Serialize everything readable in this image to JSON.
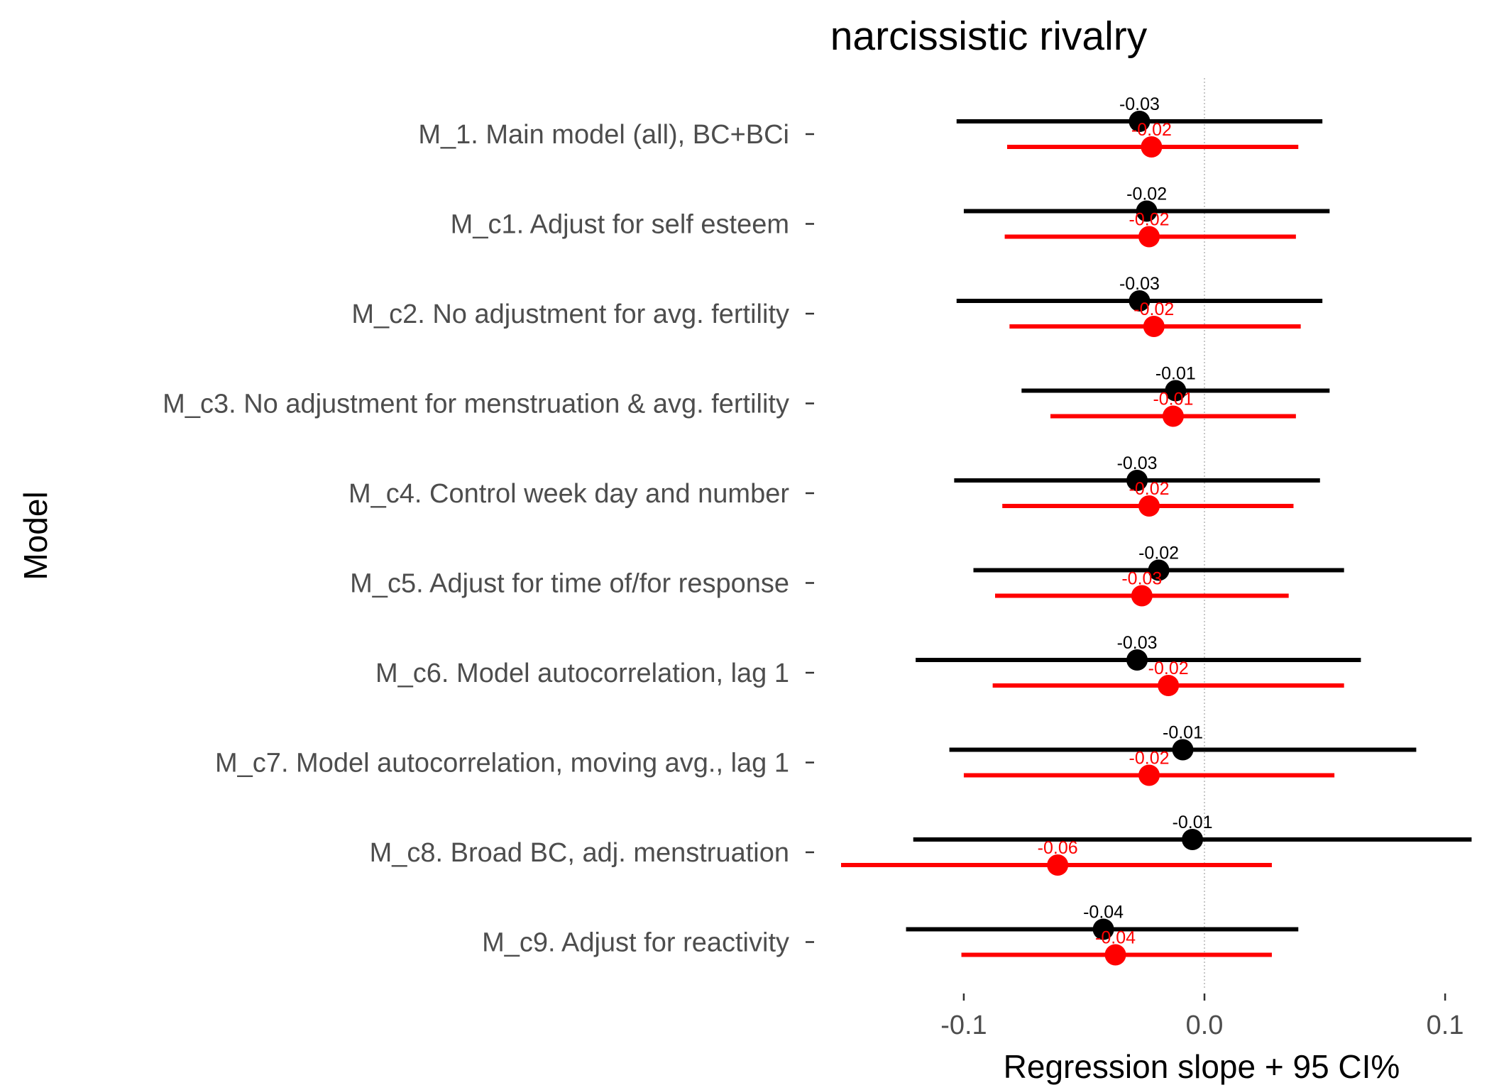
{
  "chart_data": {
    "type": "scatter",
    "title": "narcissistic rivalry",
    "xlabel": "Regression slope + 95 CI%",
    "ylabel": "Model",
    "xlim": [
      -0.151,
      0.11
    ],
    "xticks": [
      -0.1,
      0.0,
      0.1
    ],
    "xtick_labels": [
      "-0.1",
      "0.0",
      "0.1"
    ],
    "reference_line": 0,
    "grid": false,
    "categories": [
      "M_1. Main model (all), BC+BCi",
      "M_c1. Adjust for self esteem",
      "M_c2. No adjustment for avg. fertility",
      "M_c3. No adjustment for menstruation & avg. fertility",
      "M_c4. Control week day and number",
      "M_c5. Adjust for time of/for response",
      "M_c6. Model autocorrelation, lag 1",
      "M_c7. Model autocorrelation, moving avg., lag 1",
      "M_c8. Broad BC, adj. menstruation",
      "M_c9. Adjust for reactivity"
    ],
    "series": [
      {
        "color": "#000000",
        "estimates": [
          -0.027,
          -0.024,
          -0.027,
          -0.012,
          -0.028,
          -0.019,
          -0.028,
          -0.009,
          -0.005,
          -0.042
        ],
        "lower": [
          -0.103,
          -0.1,
          -0.103,
          -0.076,
          -0.104,
          -0.096,
          -0.12,
          -0.106,
          -0.121,
          -0.124
        ],
        "upper": [
          0.049,
          0.052,
          0.049,
          0.052,
          0.048,
          0.058,
          0.065,
          0.088,
          0.111,
          0.039
        ],
        "labels": [
          "-0.03",
          "-0.02",
          "-0.03",
          "-0.01",
          "-0.03",
          "-0.02",
          "-0.03",
          "-0.01",
          "-0.01",
          "-0.04"
        ]
      },
      {
        "color": "#ff0000",
        "estimates": [
          -0.022,
          -0.023,
          -0.021,
          -0.013,
          -0.023,
          -0.026,
          -0.015,
          -0.023,
          -0.061,
          -0.037
        ],
        "lower": [
          -0.082,
          -0.083,
          -0.081,
          -0.064,
          -0.084,
          -0.087,
          -0.088,
          -0.1,
          -0.151,
          -0.101
        ],
        "upper": [
          0.039,
          0.038,
          0.04,
          0.038,
          0.037,
          0.035,
          0.058,
          0.054,
          0.028,
          0.028
        ],
        "labels": [
          "-0.02",
          "-0.02",
          "-0.02",
          "-0.01",
          "-0.02",
          "-0.03",
          "-0.02",
          "-0.02",
          "-0.06",
          "-0.04"
        ]
      }
    ]
  }
}
